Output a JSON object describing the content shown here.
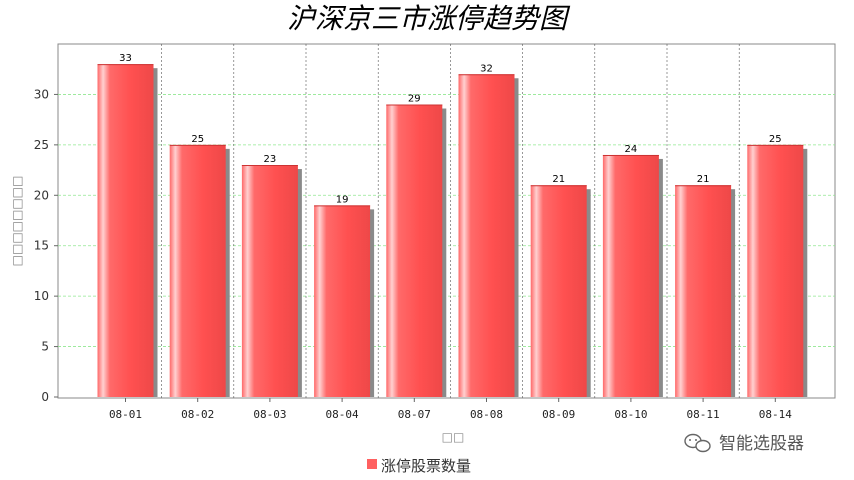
{
  "chart_data": {
    "type": "bar",
    "title": "沪深京三市涨停趋势图",
    "xlabel": "□□",
    "ylabel": "□□□□□□□□",
    "categories": [
      "08-01",
      "08-02",
      "08-03",
      "08-04",
      "08-07",
      "08-08",
      "08-09",
      "08-10",
      "08-11",
      "08-14"
    ],
    "series": [
      {
        "name": "涨停股票数量",
        "values": [
          33,
          25,
          23,
          19,
          29,
          32,
          21,
          24,
          21,
          25
        ],
        "color": "#ff6060"
      }
    ],
    "ylim": [
      0,
      35
    ],
    "yticks": [
      0,
      5,
      10,
      15,
      20,
      25,
      30
    ],
    "grid": {
      "horizontal": true,
      "vertical": true,
      "horizontal_color": "#90e890",
      "vertical_color": "#555555"
    },
    "legend": "bottom-center"
  },
  "watermark": {
    "icon": "wechat-icon",
    "text": "智能选股器"
  }
}
